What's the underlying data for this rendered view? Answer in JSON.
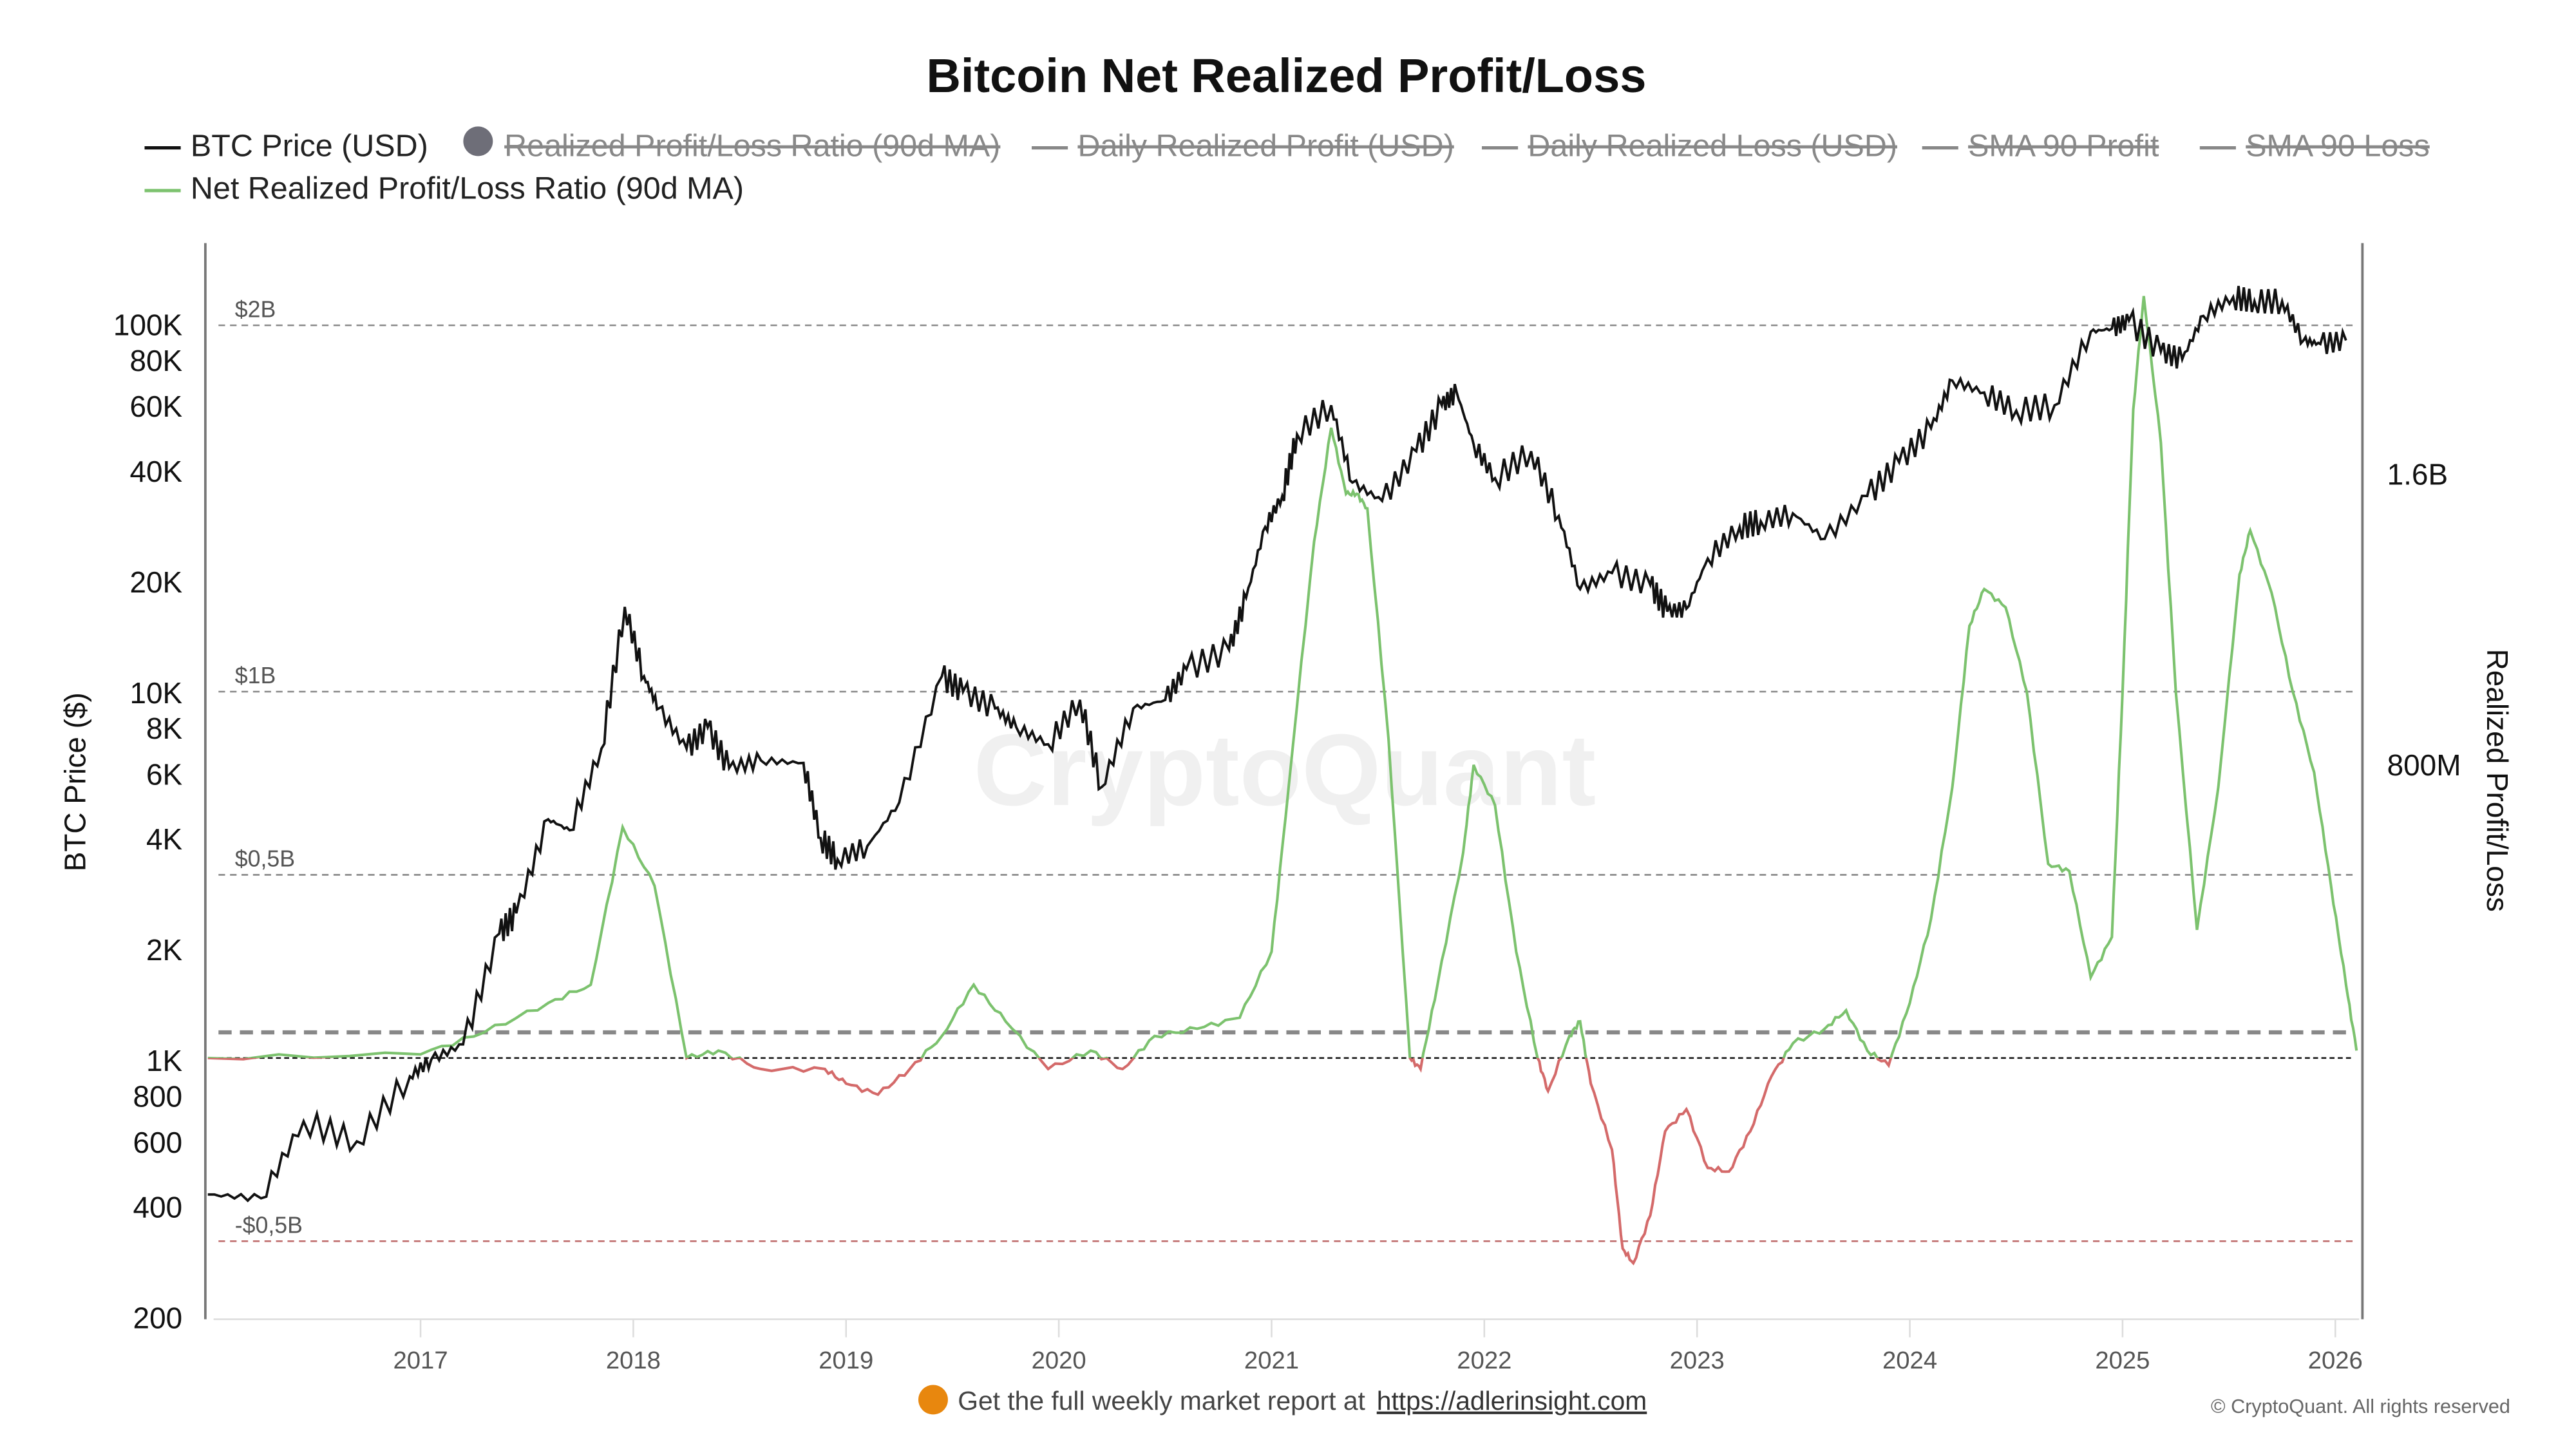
{
  "title": "Bitcoin Net Realized Profit/Loss",
  "legend": [
    {
      "label": "BTC Price (USD)",
      "color": "#111111",
      "active": true,
      "marker": "line"
    },
    {
      "label": "Realized Profit/Loss Ratio (90d MA)",
      "color": "#6e6e78",
      "active": false,
      "marker": "circle"
    },
    {
      "label": "Daily Realized Profit (USD)",
      "color": "#888888",
      "active": false,
      "marker": "line"
    },
    {
      "label": "Daily Realized Loss (USD)",
      "color": "#888888",
      "active": false,
      "marker": "line"
    },
    {
      "label": "SMA 90 Profit",
      "color": "#888888",
      "active": false,
      "marker": "line"
    },
    {
      "label": "SMA 90 Loss",
      "color": "#888888",
      "active": false,
      "marker": "line"
    },
    {
      "label": "Net Realized Profit/Loss Ratio (90d MA)",
      "color": "#7cc26e",
      "active": true,
      "marker": "line"
    }
  ],
  "watermark": "CryptoQuant",
  "footer": {
    "text": "Get the full weekly market report at",
    "link": "https://adlerinsight.com",
    "copyright": "© CryptoQuant. All rights reserved"
  },
  "chart_data": {
    "type": "line",
    "title": "Bitcoin Net Realized Profit/Loss",
    "x_ticks": [
      "2017",
      "2018",
      "2019",
      "2020",
      "2021",
      "2022",
      "2023",
      "2024",
      "2025",
      "2026"
    ],
    "xlim": [
      2015.94,
      2026.1
    ],
    "left_axis": {
      "label": "BTC Price ($)",
      "scale": "log",
      "ylim": [
        200,
        150000
      ],
      "ticks": [
        {
          "v": 100000,
          "label": "100K"
        },
        {
          "v": 80000,
          "label": "80K"
        },
        {
          "v": 60000,
          "label": "60K"
        },
        {
          "v": 40000,
          "label": "40K"
        },
        {
          "v": 20000,
          "label": "20K"
        },
        {
          "v": 10000,
          "label": "10K"
        },
        {
          "v": 8000,
          "label": "8K"
        },
        {
          "v": 6000,
          "label": "6K"
        },
        {
          "v": 4000,
          "label": "4K"
        },
        {
          "v": 2000,
          "label": "2K"
        },
        {
          "v": 1000,
          "label": "1K"
        },
        {
          "v": 800,
          "label": "800"
        },
        {
          "v": 600,
          "label": "600"
        },
        {
          "v": 400,
          "label": "400"
        },
        {
          "v": 200,
          "label": "200"
        }
      ]
    },
    "right_axis": {
      "label": "Realized Profit/Loss",
      "ticks": [
        "1.6B",
        "800M"
      ]
    },
    "reference_lines": [
      {
        "value": 2,
        "label": "$2B",
        "color": "#888888"
      },
      {
        "value": 1,
        "label": "$1B",
        "color": "#888888"
      },
      {
        "value": 0.5,
        "label": "$0,5B",
        "color": "#888888"
      },
      {
        "value": -0.5,
        "label": "-$0,5B",
        "color": "#c07070"
      },
      {
        "value": 0.07,
        "label": "",
        "color": "#888888"
      },
      {
        "value": 0,
        "label": "",
        "color": "#111111"
      }
    ],
    "positive_color": "#7cc26e",
    "negative_color": "#d46a6a",
    "series": [
      {
        "name": "BTC Price (USD)",
        "axis": "left",
        "color": "#111111",
        "x": [
          2016.0,
          2016.25,
          2016.45,
          2016.7,
          2016.95,
          2017.05,
          2017.2,
          2017.37,
          2017.45,
          2017.6,
          2017.7,
          2017.85,
          2017.96,
          2018.05,
          2018.12,
          2018.25,
          2018.35,
          2018.45,
          2018.6,
          2018.8,
          2018.88,
          2018.96,
          2019.1,
          2019.25,
          2019.45,
          2019.55,
          2019.7,
          2019.8,
          2019.95,
          2020.1,
          2020.2,
          2020.35,
          2020.5,
          2020.6,
          2020.8,
          2020.88,
          2020.97,
          2021.05,
          2021.12,
          2021.28,
          2021.38,
          2021.52,
          2021.68,
          2021.8,
          2021.87,
          2021.95,
          2022.05,
          2022.22,
          2022.35,
          2022.45,
          2022.6,
          2022.78,
          2022.86,
          2022.95,
          2023.05,
          2023.2,
          2023.3,
          2023.45,
          2023.6,
          2023.8,
          2023.95,
          2024.1,
          2024.2,
          2024.35,
          2024.5,
          2024.68,
          2024.85,
          2024.95,
          2025.03,
          2025.18,
          2025.28,
          2025.38,
          2025.52,
          2025.62,
          2025.75,
          2025.85,
          2025.93,
          2026.05
        ],
        "y": [
          430,
          420,
          680,
          600,
          900,
          1000,
          1100,
          2200,
          2500,
          4500,
          4200,
          7000,
          17000,
          11000,
          9000,
          7000,
          8000,
          6200,
          6500,
          6400,
          4000,
          3500,
          3800,
          5000,
          11000,
          10000,
          9000,
          8000,
          7200,
          9500,
          5500,
          9000,
          9500,
          11500,
          13000,
          18000,
          28000,
          34000,
          50000,
          60000,
          37000,
          33000,
          45000,
          60000,
          65000,
          47000,
          38000,
          45000,
          30000,
          19000,
          21000,
          19500,
          16500,
          16800,
          23000,
          28000,
          29000,
          30500,
          26000,
          34000,
          42000,
          52000,
          70000,
          65000,
          58000,
          60000,
          95000,
          97000,
          102000,
          84000,
          80000,
          105000,
          118000,
          115000,
          115000,
          90000,
          88000,
          90000
        ]
      },
      {
        "name": "Net Realized Profit/Loss Ratio (90d MA)",
        "axis": "right",
        "color": "#7cc26e",
        "unit": "USD billions",
        "x": [
          2016.0,
          2017.0,
          2017.3,
          2017.6,
          2017.8,
          2017.95,
          2018.1,
          2018.25,
          2018.4,
          2018.6,
          2018.9,
          2019.0,
          2019.15,
          2019.3,
          2019.45,
          2019.6,
          2019.75,
          2019.95,
          2020.15,
          2020.3,
          2020.45,
          2020.65,
          2020.85,
          2021.0,
          2021.08,
          2021.2,
          2021.28,
          2021.35,
          2021.4,
          2021.45,
          2021.55,
          2021.65,
          2021.7,
          2021.78,
          2021.9,
          2021.95,
          2022.05,
          2022.15,
          2022.25,
          2022.3,
          2022.4,
          2022.45,
          2022.5,
          2022.6,
          2022.65,
          2022.7,
          2022.78,
          2022.85,
          2022.95,
          2023.05,
          2023.15,
          2023.25,
          2023.35,
          2023.45,
          2023.6,
          2023.7,
          2023.8,
          2023.9,
          2024.0,
          2024.1,
          2024.2,
          2024.28,
          2024.35,
          2024.45,
          2024.55,
          2024.65,
          2024.75,
          2024.85,
          2024.95,
          2025.0,
          2025.05,
          2025.1,
          2025.18,
          2025.25,
          2025.35,
          2025.45,
          2025.55,
          2025.6,
          2025.7,
          2025.8,
          2025.9,
          2025.98,
          2026.05,
          2026.1
        ],
        "y": [
          0.0,
          0.01,
          0.07,
          0.15,
          0.2,
          0.63,
          0.47,
          0.0,
          0.02,
          -0.03,
          -0.03,
          -0.07,
          -0.1,
          -0.03,
          0.06,
          0.2,
          0.1,
          -0.03,
          0.02,
          -0.03,
          0.06,
          0.08,
          0.11,
          0.29,
          0.74,
          1.41,
          1.72,
          1.54,
          1.54,
          1.5,
          0.87,
          0.0,
          -0.03,
          0.2,
          0.56,
          0.8,
          0.69,
          0.29,
          0.0,
          -0.09,
          0.06,
          0.1,
          -0.07,
          -0.25,
          -0.52,
          -0.56,
          -0.43,
          -0.2,
          -0.14,
          -0.3,
          -0.31,
          -0.2,
          -0.05,
          0.04,
          0.08,
          0.13,
          0.02,
          -0.02,
          0.15,
          0.38,
          0.74,
          1.18,
          1.28,
          1.23,
          1.0,
          0.53,
          0.51,
          0.22,
          0.33,
          1.0,
          1.77,
          2.08,
          1.68,
          1.0,
          0.35,
          0.74,
          1.32,
          1.44,
          1.27,
          1.0,
          0.78,
          0.47,
          0.2,
          0.02
        ]
      }
    ]
  }
}
